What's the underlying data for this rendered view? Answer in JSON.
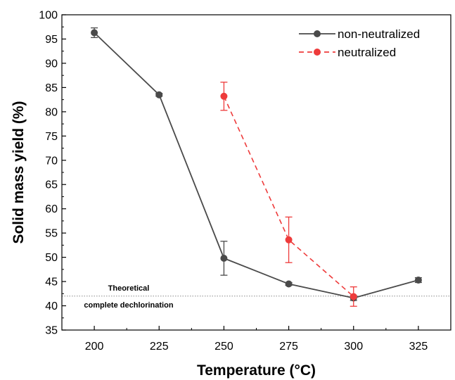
{
  "chart_data": {
    "type": "line",
    "xlabel": "Temperature (°C)",
    "ylabel": "Solid mass yield (%)",
    "xlim": [
      187.5,
      337.5
    ],
    "ylim": [
      35,
      100
    ],
    "xticks": [
      200,
      225,
      250,
      275,
      300,
      325
    ],
    "yticks": [
      35,
      40,
      45,
      50,
      55,
      60,
      65,
      70,
      75,
      80,
      85,
      90,
      95,
      100
    ],
    "legend_position": "top-right",
    "series": [
      {
        "name": "non-neutralized",
        "color": "#4a4a4a",
        "line_style": "solid",
        "marker": "circle",
        "x": [
          200,
          225,
          250,
          275,
          300,
          325
        ],
        "y": [
          96.3,
          83.5,
          49.8,
          44.5,
          41.6,
          45.3
        ],
        "error": [
          1.0,
          0.3,
          3.5,
          0.3,
          0.5,
          0.5
        ]
      },
      {
        "name": "neutralized",
        "color": "#ee3b3b",
        "line_style": "dashed",
        "marker": "circle",
        "x": [
          250,
          275,
          300
        ],
        "y": [
          83.2,
          53.6,
          41.9
        ],
        "error": [
          2.9,
          4.7,
          2.0
        ]
      }
    ],
    "reference_line": {
      "y": 42,
      "style": "dotted",
      "label_line1": "Theoretical",
      "label_line2": "complete dechlorination"
    }
  }
}
